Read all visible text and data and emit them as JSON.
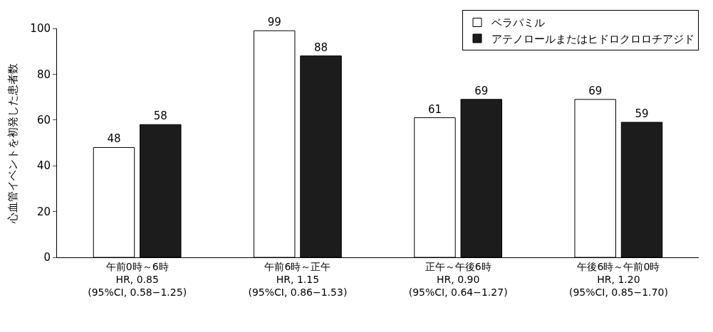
{
  "chart_data": {
    "type": "bar",
    "ylabel": "心血管イベントを初発した患者数",
    "categories": [
      "午前0時～6時\nHR, 0.85\n(95%CI, 0.58−1.25)",
      "午前6時～正午\nHR, 1.15\n(95%CI, 0.86−1.53)",
      "正午～午後6時\nHR, 0.90\n(95%CI, 0.64−1.27)",
      "午後6時～午前0時\nHR, 1.20\n(95%CI, 0.85−1.70)"
    ],
    "series": [
      {
        "name": "ベラパミル",
        "color": "#ffffff",
        "values": [
          48,
          99,
          61,
          69
        ]
      },
      {
        "name": "アテノロールまたはヒドロクロロチアジド",
        "color": "#1c1c1c",
        "values": [
          58,
          88,
          69,
          59
        ]
      }
    ],
    "ylim": [
      0,
      100
    ],
    "yticks": [
      0,
      20,
      40,
      60,
      80,
      100
    ],
    "legend": "top right",
    "data_labels": true
  }
}
